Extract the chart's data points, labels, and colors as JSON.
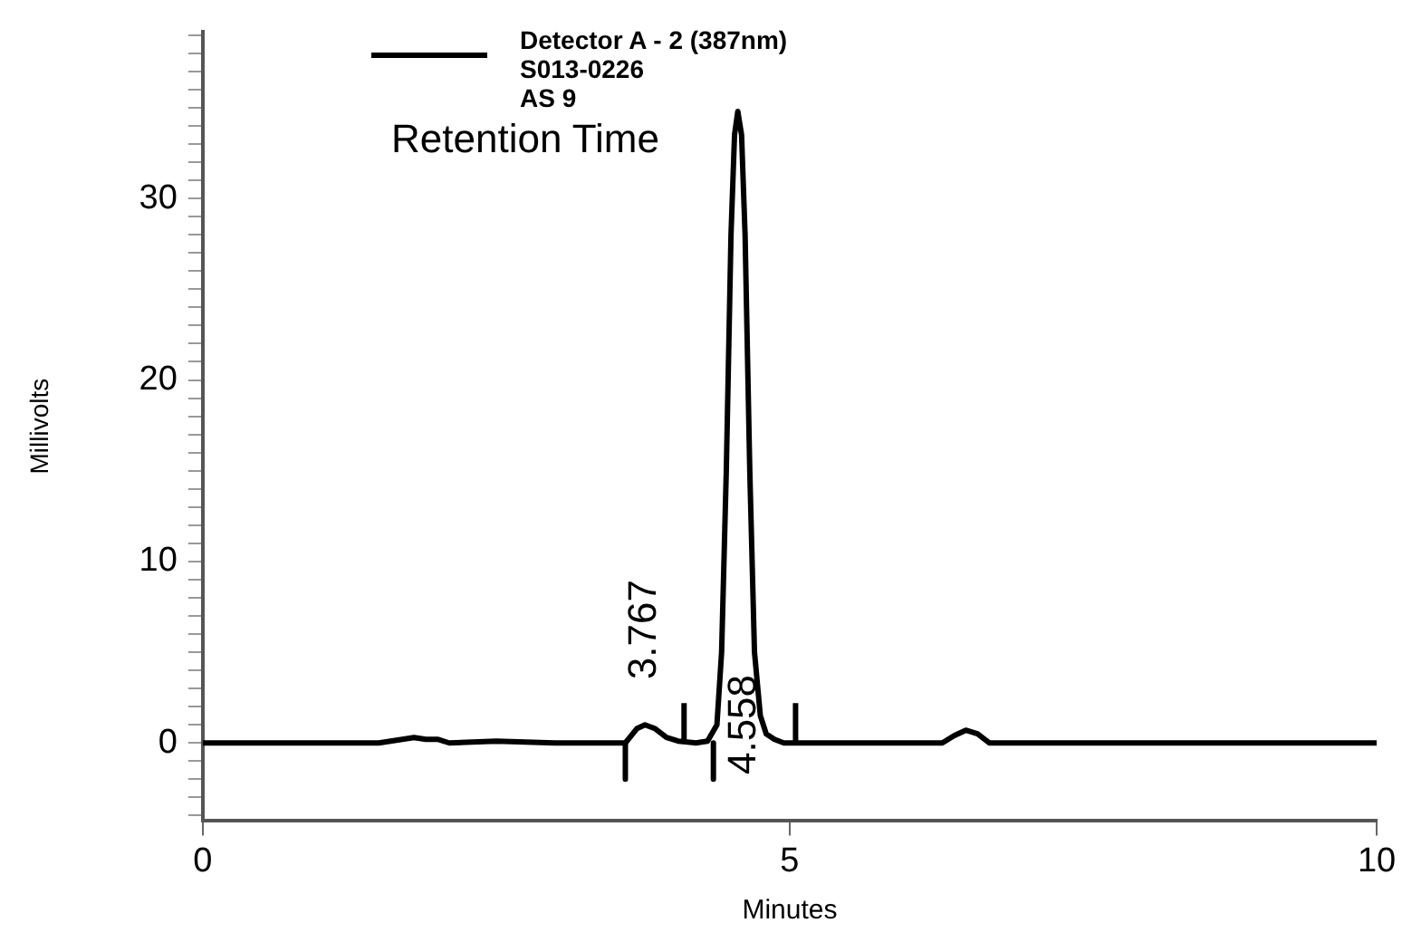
{
  "chart_data": {
    "type": "line",
    "xlabel": "Minutes",
    "ylabel": "Millivolts",
    "annotations": [
      "Retention Time",
      {
        "text": "3.767",
        "x": 3.767,
        "y": 1.0
      },
      "4.558"
    ],
    "xlim": [
      0,
      10
    ],
    "xticks": [
      0,
      5,
      10
    ],
    "ylim": [
      -4.3,
      39.2
    ],
    "yticks": [
      {
        "value": -4,
        "label": null
      },
      {
        "value": -3,
        "label": null
      },
      {
        "value": -2,
        "label": null
      },
      {
        "value": -1,
        "label": null
      },
      0,
      {
        "value": 1,
        "label": null
      },
      {
        "value": 2,
        "label": null
      },
      {
        "value": 3,
        "label": null
      },
      {
        "value": 4,
        "label": null
      },
      {
        "value": 5,
        "label": null
      },
      {
        "value": 6,
        "label": null
      },
      {
        "value": 7,
        "label": null
      },
      {
        "value": 8,
        "label": null
      },
      {
        "value": 9,
        "label": null
      },
      10,
      {
        "value": 11,
        "label": null
      },
      {
        "value": 12,
        "label": null
      },
      {
        "value": 13,
        "label": null
      },
      {
        "value": 14,
        "label": null
      },
      {
        "value": 15,
        "label": null
      },
      {
        "value": 16,
        "label": null
      },
      {
        "value": 17,
        "label": null
      },
      {
        "value": 18,
        "label": null
      },
      {
        "value": 19,
        "label": null
      },
      20,
      {
        "value": 21,
        "label": null
      },
      {
        "value": 22,
        "label": null
      },
      {
        "value": 23,
        "label": null
      },
      {
        "value": 24,
        "label": null
      },
      {
        "value": 25,
        "label": null
      },
      {
        "value": 26,
        "label": null
      },
      {
        "value": 27,
        "label": null
      },
      {
        "value": 28,
        "label": null
      },
      {
        "value": 29,
        "label": null
      },
      30,
      {
        "value": 31,
        "label": null
      },
      {
        "value": 32,
        "label": null
      },
      {
        "value": 33,
        "label": null
      },
      {
        "value": 34,
        "label": null
      },
      {
        "value": 35,
        "label": null
      },
      {
        "value": 36,
        "label": null
      },
      {
        "value": 37,
        "label": null
      },
      {
        "value": 38,
        "label": null
      },
      {
        "value": 39,
        "label": null
      }
    ],
    "grid": false,
    "legend": "top",
    "marker": "none",
    "line_style": "solid",
    "series": [
      {
        "name": "Detector A - 2 (387nm)\nS013-0226\nAS 9",
        "color": "#000000",
        "x": [
          0,
          0.5,
          1,
          1.5,
          1.8,
          1.9,
          2.0,
          2.1,
          2.5,
          3,
          3.5,
          3.6,
          3.7,
          3.767,
          3.85,
          3.95,
          4.05,
          4.2,
          4.3,
          4.38,
          4.42,
          4.46,
          4.5,
          4.53,
          4.558,
          4.59,
          4.62,
          4.66,
          4.7,
          4.75,
          4.8,
          4.87,
          4.95,
          5.2,
          5.5,
          6,
          6.3,
          6.4,
          6.5,
          6.6,
          6.7,
          7,
          7.5,
          8,
          8.5,
          9,
          9.5,
          10
        ],
        "values": [
          0,
          0,
          0,
          0,
          0.3,
          0.2,
          0.2,
          0,
          0.1,
          0,
          0,
          0,
          0.8,
          1.0,
          0.8,
          0.3,
          0.1,
          0,
          0.1,
          1,
          5,
          15,
          28,
          33.5,
          34.8,
          33.5,
          28,
          15,
          5,
          1.5,
          0.5,
          0.2,
          0,
          0,
          0,
          0,
          0,
          0.4,
          0.7,
          0.5,
          0,
          0,
          0,
          0,
          0,
          0,
          0,
          0
        ]
      },
      {
        "color": "#000000",
        "x": [
          3.6,
          3.6,
          null,
          4.1,
          4.1,
          null,
          4.35,
          4.35,
          null,
          5.05,
          5.05
        ],
        "values": [
          0,
          -2,
          null,
          0,
          2.2,
          null,
          0,
          -2,
          null,
          0,
          2.2
        ]
      }
    ]
  }
}
